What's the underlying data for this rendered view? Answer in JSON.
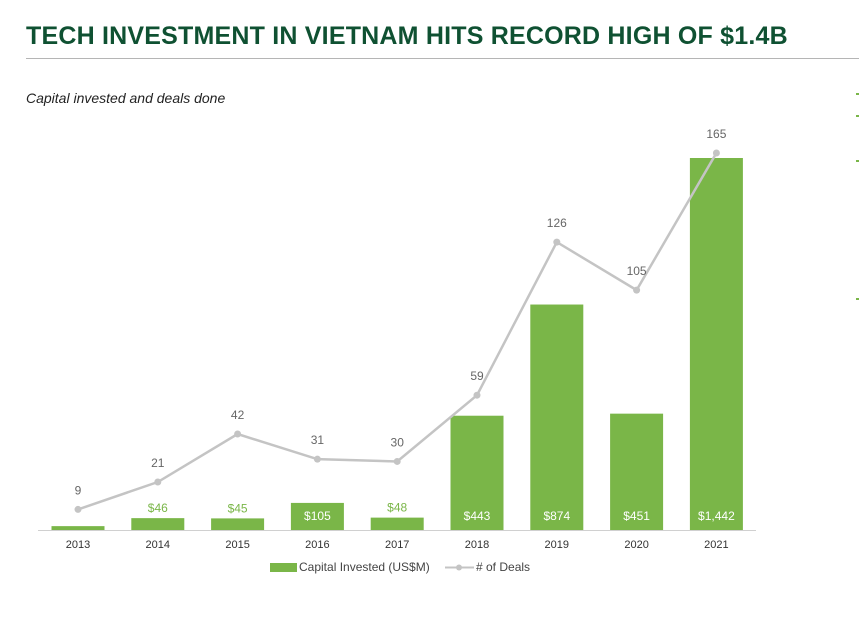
{
  "header": {
    "title": "TECH INVESTMENT IN VIETNAM HITS RECORD HIGH OF $1.4B",
    "subtitle": "Capital invested and deals done"
  },
  "colors": {
    "title": "#0f5132",
    "bar": "#7ab648",
    "line": "#c4c4c4",
    "bar_label_outside": "#7ab648",
    "bar_label_inside": "#ffffff"
  },
  "chart_data": {
    "type": "bar",
    "title": "",
    "xlabel": "",
    "ylabel": "",
    "categories": [
      "2013",
      "2014",
      "2015",
      "2016",
      "2017",
      "2018",
      "2019",
      "2020",
      "2021"
    ],
    "series": [
      {
        "name": "Capital Invested (US$M)",
        "type": "bar",
        "values": [
          15,
          46,
          45,
          105,
          48,
          443,
          874,
          451,
          1442
        ],
        "labels": [
          "",
          "$46",
          "$45",
          "$105",
          "$48",
          "$443",
          "$874",
          "$451",
          "$1,442"
        ]
      },
      {
        "name": "# of Deals",
        "type": "line",
        "values": [
          9,
          21,
          42,
          31,
          30,
          59,
          126,
          105,
          165
        ],
        "labels": [
          "9",
          "21",
          "42",
          "31",
          "30",
          "59",
          "126",
          "105",
          "165"
        ]
      }
    ],
    "ylim_bars": [
      0,
      1442
    ],
    "ylim_line": [
      0,
      165
    ],
    "grid": false,
    "legend": "bottom-center"
  }
}
